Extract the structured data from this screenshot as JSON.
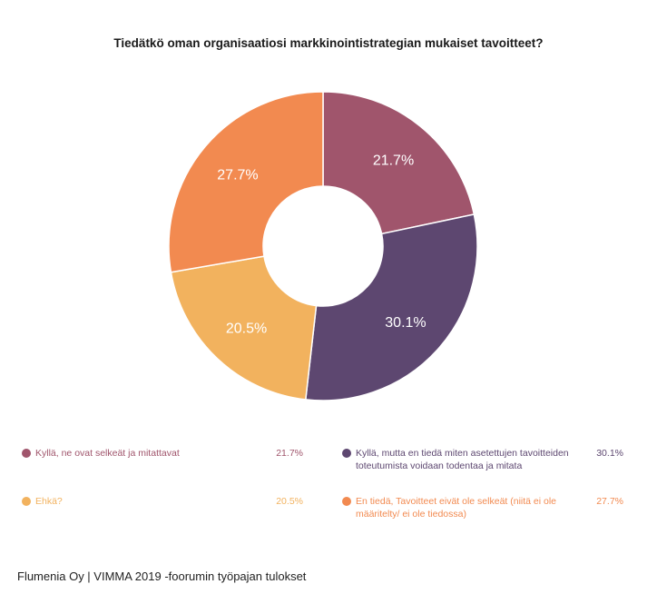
{
  "chart_data": {
    "type": "pie",
    "title": "Tiedätkö oman organisaatiosi markkinointistrategian mukaiset tavoitteet?",
    "slices": [
      {
        "label": "Kyllä, ne ovat selkeät ja mitattavat",
        "value": 21.7,
        "display": "21.7%",
        "color": "#a0556c"
      },
      {
        "label": "Kyllä, mutta en tiedä miten asetettujen tavoitteiden toteutumista voidaan todentaa ja mitata",
        "value": 30.1,
        "display": "30.1%",
        "color": "#5d4770"
      },
      {
        "label": "Ehkä?",
        "value": 20.5,
        "display": "20.5%",
        "color": "#f2b25e"
      },
      {
        "label": "En tiedä, Tavoitteet eivät ole selkeät (niitä ei ole määritelty/ ei ole tiedossa)",
        "value": 27.7,
        "display": "27.7%",
        "color": "#f28a50"
      }
    ],
    "legend_position": "bottom"
  },
  "footer": "Flumenia Oy | VIMMA 2019 -foorumin työpajan tulokset"
}
